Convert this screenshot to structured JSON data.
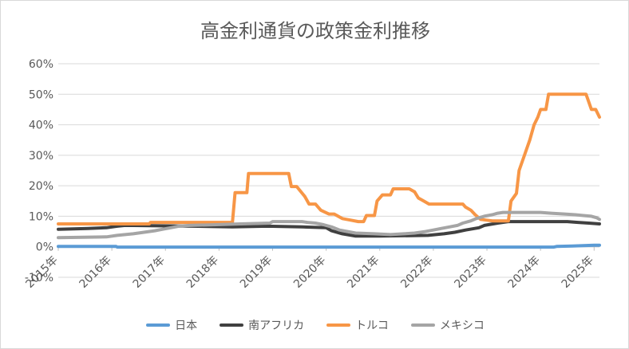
{
  "chart_data": {
    "type": "line",
    "title": "高金利通貨の政策金利推移",
    "xlabel": "",
    "ylabel": "",
    "ylim": [
      -10,
      60
    ],
    "y_ticks": [
      -10,
      0,
      10,
      20,
      30,
      40,
      50,
      60
    ],
    "y_tick_labels": [
      "-10%",
      "0%",
      "10%",
      "20%",
      "30%",
      "40%",
      "50%",
      "60%"
    ],
    "x_range": [
      2015.0,
      2025.1
    ],
    "x_ticks": [
      2015,
      2016,
      2017,
      2018,
      2019,
      2020,
      2021,
      2022,
      2023,
      2024,
      2025
    ],
    "x_tick_labels": [
      "2015年",
      "2016年",
      "2017年",
      "2018年",
      "2019年",
      "2020年",
      "2021年",
      "2022年",
      "2023年",
      "2024年",
      "2025年"
    ],
    "grid": true,
    "legend_position": "bottom",
    "series": [
      {
        "name": "日本",
        "color": "#5b9bd5",
        "points": [
          [
            2015.0,
            0.1
          ],
          [
            2016.08,
            0.1
          ],
          [
            2016.1,
            -0.1
          ],
          [
            2024.25,
            -0.1
          ],
          [
            2024.3,
            0.1
          ],
          [
            2024.6,
            0.25
          ],
          [
            2025.0,
            0.5
          ],
          [
            2025.1,
            0.5
          ]
        ]
      },
      {
        "name": "南アフリカ",
        "color": "#404040",
        "points": [
          [
            2015.0,
            5.75
          ],
          [
            2015.55,
            6.0
          ],
          [
            2015.9,
            6.25
          ],
          [
            2016.1,
            6.75
          ],
          [
            2016.25,
            7.0
          ],
          [
            2017.5,
            6.75
          ],
          [
            2018.25,
            6.5
          ],
          [
            2018.9,
            6.75
          ],
          [
            2019.55,
            6.5
          ],
          [
            2020.0,
            6.25
          ],
          [
            2020.1,
            5.25
          ],
          [
            2020.3,
            4.25
          ],
          [
            2020.55,
            3.5
          ],
          [
            2021.0,
            3.5
          ],
          [
            2021.9,
            3.75
          ],
          [
            2022.2,
            4.25
          ],
          [
            2022.4,
            4.75
          ],
          [
            2022.6,
            5.5
          ],
          [
            2022.85,
            6.25
          ],
          [
            2022.95,
            7.0
          ],
          [
            2023.2,
            7.75
          ],
          [
            2023.4,
            8.25
          ],
          [
            2024.0,
            8.25
          ],
          [
            2024.5,
            8.25
          ],
          [
            2024.7,
            8.0
          ],
          [
            2024.9,
            7.75
          ],
          [
            2025.1,
            7.5
          ]
        ]
      },
      {
        "name": "トルコ",
        "color": "#f79646",
        "points": [
          [
            2015.0,
            7.5
          ],
          [
            2016.7,
            7.5
          ],
          [
            2016.72,
            8.0
          ],
          [
            2018.25,
            8.0
          ],
          [
            2018.3,
            17.75
          ],
          [
            2018.52,
            17.75
          ],
          [
            2018.55,
            24.0
          ],
          [
            2019.3,
            24.0
          ],
          [
            2019.35,
            19.75
          ],
          [
            2019.45,
            19.75
          ],
          [
            2019.6,
            16.5
          ],
          [
            2019.68,
            14.0
          ],
          [
            2019.8,
            14.0
          ],
          [
            2019.9,
            12.0
          ],
          [
            2020.05,
            10.75
          ],
          [
            2020.15,
            10.75
          ],
          [
            2020.3,
            9.25
          ],
          [
            2020.45,
            8.75
          ],
          [
            2020.6,
            8.25
          ],
          [
            2020.7,
            8.25
          ],
          [
            2020.75,
            10.25
          ],
          [
            2020.9,
            10.25
          ],
          [
            2020.95,
            15.0
          ],
          [
            2021.05,
            17.0
          ],
          [
            2021.2,
            17.0
          ],
          [
            2021.25,
            19.0
          ],
          [
            2021.55,
            19.0
          ],
          [
            2021.65,
            18.0
          ],
          [
            2021.72,
            16.0
          ],
          [
            2021.82,
            15.0
          ],
          [
            2021.92,
            14.0
          ],
          [
            2022.55,
            14.0
          ],
          [
            2022.6,
            13.0
          ],
          [
            2022.7,
            12.0
          ],
          [
            2022.78,
            10.5
          ],
          [
            2022.88,
            9.0
          ],
          [
            2023.1,
            8.5
          ],
          [
            2023.4,
            8.5
          ],
          [
            2023.45,
            15.0
          ],
          [
            2023.55,
            17.5
          ],
          [
            2023.6,
            25.0
          ],
          [
            2023.7,
            30.0
          ],
          [
            2023.8,
            35.0
          ],
          [
            2023.88,
            40.0
          ],
          [
            2023.95,
            42.5
          ],
          [
            2024.0,
            45.0
          ],
          [
            2024.1,
            45.0
          ],
          [
            2024.15,
            50.0
          ],
          [
            2024.85,
            50.0
          ],
          [
            2024.9,
            47.5
          ],
          [
            2024.95,
            45.0
          ],
          [
            2025.03,
            45.0
          ],
          [
            2025.1,
            42.5
          ]
        ]
      },
      {
        "name": "メキシコ",
        "color": "#a5a5a5",
        "points": [
          [
            2015.0,
            3.0
          ],
          [
            2015.9,
            3.25
          ],
          [
            2016.1,
            3.75
          ],
          [
            2016.4,
            4.25
          ],
          [
            2016.6,
            4.75
          ],
          [
            2016.8,
            5.25
          ],
          [
            2016.95,
            5.75
          ],
          [
            2017.1,
            6.25
          ],
          [
            2017.25,
            6.75
          ],
          [
            2017.45,
            7.0
          ],
          [
            2017.95,
            7.25
          ],
          [
            2018.4,
            7.5
          ],
          [
            2018.95,
            7.75
          ],
          [
            2019.0,
            8.25
          ],
          [
            2019.55,
            8.25
          ],
          [
            2019.65,
            8.0
          ],
          [
            2019.8,
            7.75
          ],
          [
            2019.95,
            7.25
          ],
          [
            2020.1,
            6.5
          ],
          [
            2020.25,
            5.5
          ],
          [
            2020.4,
            5.0
          ],
          [
            2020.55,
            4.5
          ],
          [
            2020.9,
            4.25
          ],
          [
            2021.2,
            4.0
          ],
          [
            2021.45,
            4.25
          ],
          [
            2021.65,
            4.5
          ],
          [
            2021.85,
            5.0
          ],
          [
            2022.0,
            5.5
          ],
          [
            2022.15,
            6.0
          ],
          [
            2022.3,
            6.5
          ],
          [
            2022.45,
            7.0
          ],
          [
            2022.55,
            7.75
          ],
          [
            2022.7,
            8.5
          ],
          [
            2022.8,
            9.25
          ],
          [
            2022.95,
            10.0
          ],
          [
            2023.1,
            10.5
          ],
          [
            2023.2,
            11.0
          ],
          [
            2023.3,
            11.25
          ],
          [
            2024.0,
            11.25
          ],
          [
            2024.2,
            11.0
          ],
          [
            2024.45,
            10.75
          ],
          [
            2024.65,
            10.5
          ],
          [
            2024.8,
            10.25
          ],
          [
            2024.95,
            10.0
          ],
          [
            2025.05,
            9.5
          ],
          [
            2025.1,
            9.0
          ]
        ]
      }
    ]
  }
}
